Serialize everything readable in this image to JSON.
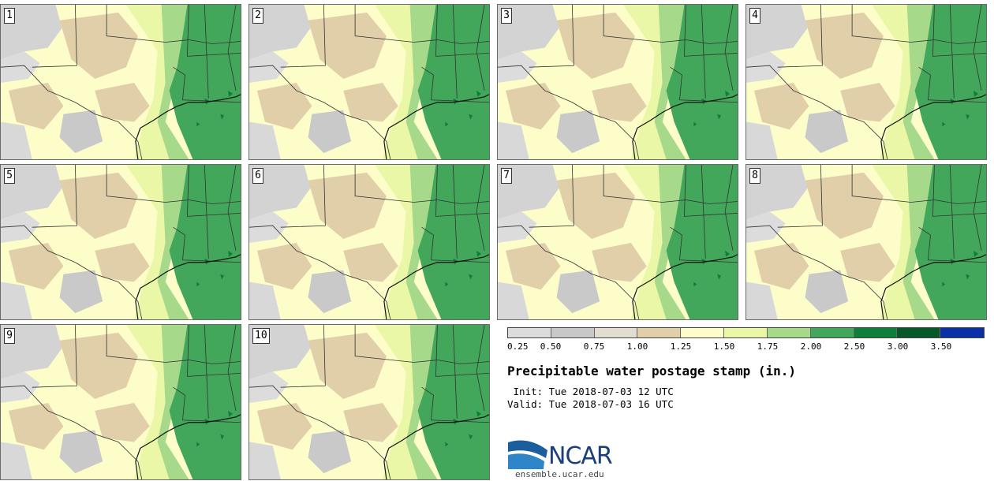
{
  "panels": [
    {
      "label": "1"
    },
    {
      "label": "2"
    },
    {
      "label": "3"
    },
    {
      "label": "4"
    },
    {
      "label": "5"
    },
    {
      "label": "6"
    },
    {
      "label": "7"
    },
    {
      "label": "8"
    },
    {
      "label": "9"
    },
    {
      "label": "10"
    }
  ],
  "colorbar": {
    "ticks": [
      "0.25",
      "0.50",
      "0.75",
      "1.00",
      "1.25",
      "1.50",
      "1.75",
      "2.00",
      "2.50",
      "3.00",
      "3.50"
    ],
    "colors": [
      "#dcdcdc",
      "#c8c8c8",
      "#e1ddd0",
      "#e0cfa9",
      "#fcfdc8",
      "#eaf7a6",
      "#a6d98a",
      "#42a65b",
      "#0e7f3a",
      "#06582a",
      "#0b2fa6"
    ]
  },
  "title": "Precipitable water postage stamp (in.)",
  "init_line": " Init: Tue 2018-07-03 12 UTC",
  "valid_line": "Valid: Tue 2018-07-03 16 UTC",
  "logo": {
    "text": "NCAR",
    "site": "ensemble.ucar.edu"
  }
}
